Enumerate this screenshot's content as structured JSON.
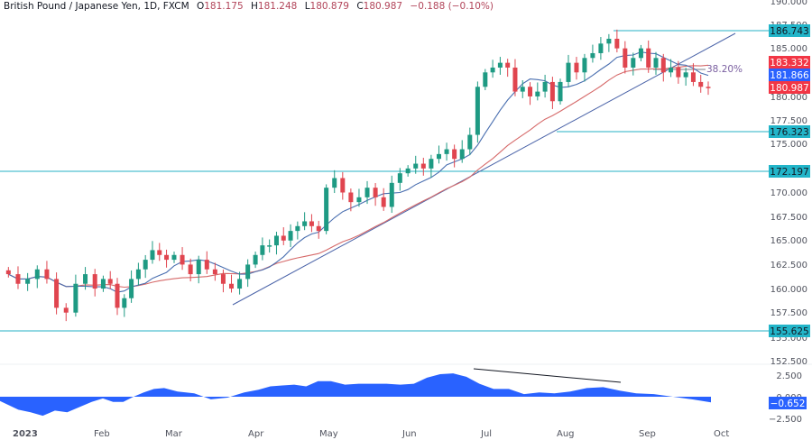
{
  "header": {
    "symbol": "British Pound / Japanese Yen, 1D, FXCM",
    "o_label": "O",
    "o": "181.175",
    "h_label": "H",
    "h": "181.248",
    "l_label": "L",
    "l": "180.879",
    "c_label": "C",
    "c": "180.987",
    "change": "−0.188 (−0.10%)"
  },
  "colors": {
    "up": "#26a69a",
    "down": "#ef5350",
    "candle_up": "#1e9a83",
    "candle_down": "#e0454f",
    "ma_fast": "#4a6fb0",
    "ma_slow": "#d66a6a",
    "level": "#26b2c4",
    "trendline": "#4a63a8",
    "osc": "#2962ff",
    "tag_red": "#f23645",
    "tag_blue": "#2962ff",
    "tag_cyan": "#22b5c9"
  },
  "chart_data": [
    {
      "type": "candlestick",
      "title": "British Pound / Japanese Yen, 1D, FXCM",
      "y_axis_ticks": [
        "190.000",
        "187.500",
        "185.000",
        "182.500",
        "180.000",
        "177.500",
        "175.000",
        "172.500",
        "170.000",
        "167.500",
        "165.000",
        "162.500",
        "160.000",
        "157.500",
        "155.000",
        "152.500"
      ],
      "x_axis_ticks": [
        "2023",
        "Feb",
        "Mar",
        "Apr",
        "May",
        "Jun",
        "Jul",
        "Aug",
        "Sep",
        "Oct"
      ],
      "ohlc_last": {
        "open": 181.175,
        "high": 181.248,
        "low": 180.879,
        "close": 180.987,
        "change": -0.188,
        "change_pct": -0.1
      },
      "horizontal_levels": [
        186.743,
        176.323,
        172.197,
        155.625
      ],
      "price_tags": [
        {
          "value": "186.743",
          "kind": "level"
        },
        {
          "value": "183.332",
          "kind": "ma_slow"
        },
        {
          "value": "181.866",
          "kind": "ma_fast"
        },
        {
          "value": "180.987",
          "kind": "last_price"
        },
        {
          "value": "176.323",
          "kind": "level"
        },
        {
          "value": "172.197",
          "kind": "level"
        },
        {
          "value": "155.625",
          "kind": "level"
        }
      ],
      "fib_label": "38.20%",
      "trendline": {
        "from": {
          "date": "Mar-end",
          "price": 158.3
        },
        "to": {
          "date": "Sep-end",
          "price": 187.0
        }
      },
      "approx_closes_by_month": {
        "Jan": [
          161.5,
          160.5,
          161.0,
          162.0,
          161.0,
          158.0,
          157.5,
          160.5,
          161.5,
          160.0
        ],
        "Feb": [
          161.0,
          160.5,
          158.0,
          159.0,
          161.0,
          162.0,
          163.0,
          164.0,
          163.5,
          163.0
        ],
        "Mar": [
          163.5,
          162.5,
          161.5,
          163.0,
          162.0,
          161.5,
          160.5,
          160.0,
          161.0,
          162.5
        ],
        "Apr": [
          163.5,
          164.5,
          164.5,
          165.5,
          165.0,
          166.0,
          166.5,
          167.0,
          166.5,
          166.0
        ],
        "May": [
          170.5,
          171.5,
          170.0,
          169.0,
          169.5,
          170.5,
          169.5,
          168.5,
          171.0,
          172.0
        ],
        "Jun": [
          172.5,
          173.0,
          172.5,
          173.5,
          174.0,
          174.5,
          173.5,
          174.5,
          176.0,
          181.0
        ],
        "Jul": [
          182.5,
          183.0,
          183.5,
          183.0,
          180.5,
          181.0,
          180.0,
          180.5,
          181.5,
          179.5
        ],
        "Aug": [
          181.5,
          183.5,
          182.5,
          184.0,
          184.5,
          185.5,
          186.0,
          185.0,
          183.0,
          184.0
        ],
        "Sep": [
          185.0,
          183.0,
          184.0,
          182.5,
          183.0,
          182.0,
          182.5,
          181.5,
          181.0,
          180.987
        ]
      }
    },
    {
      "type": "area",
      "title": "Oscillator",
      "y_axis_ticks": [
        "2.500",
        "0.000",
        "-2.500"
      ],
      "last_value": "−0.652",
      "divergence_line": {
        "from": "late Jun peak ~2.7",
        "to": "mid Aug peak ~1.2"
      },
      "approx_values_by_month": {
        "Jan": [
          -0.5,
          -1.5,
          -1.8,
          -2.2,
          -1.6,
          -1.8,
          -1.2,
          -0.6
        ],
        "Feb": [
          -0.2,
          -0.6,
          -0.6,
          0.0,
          0.5,
          0.9,
          1.0
        ],
        "Mar": [
          0.6,
          0.4,
          -0.3,
          -0.1,
          0.5
        ],
        "Apr": [
          0.8,
          1.2,
          1.3,
          1.4,
          1.2,
          1.8
        ],
        "May": [
          1.8,
          1.4,
          1.5,
          1.5,
          1.5,
          1.4
        ],
        "Jun": [
          1.5,
          2.2,
          2.6,
          2.7,
          2.3,
          1.5
        ],
        "Jul": [
          0.9,
          0.9,
          0.3,
          0.5,
          0.4
        ],
        "Aug": [
          0.6,
          1.0,
          1.1,
          0.7,
          0.4
        ],
        "Sep": [
          0.3,
          0.0,
          -0.3,
          -0.652
        ]
      }
    }
  ],
  "axis": {
    "price_labels": [
      "190.000",
      "187.500",
      "185.000",
      "182.500",
      "180.000",
      "177.500",
      "175.000",
      "172.500",
      "170.000",
      "167.500",
      "165.000",
      "162.500",
      "160.000",
      "157.500",
      "155.000",
      "152.500"
    ],
    "osc_labels": [
      "2.500",
      "0.000",
      "−2.500"
    ],
    "time_labels": [
      "2023",
      "Feb",
      "Mar",
      "Apr",
      "May",
      "Jun",
      "Jul",
      "Aug",
      "Sep",
      "Oct"
    ],
    "tags": {
      "t1": "186.743",
      "t2": "183.332",
      "t3": "181.866",
      "t4": "180.987",
      "t5": "176.323",
      "t6": "172.197",
      "t7": "155.625",
      "osc": "−0.652"
    },
    "fib_label": "38.20%"
  }
}
